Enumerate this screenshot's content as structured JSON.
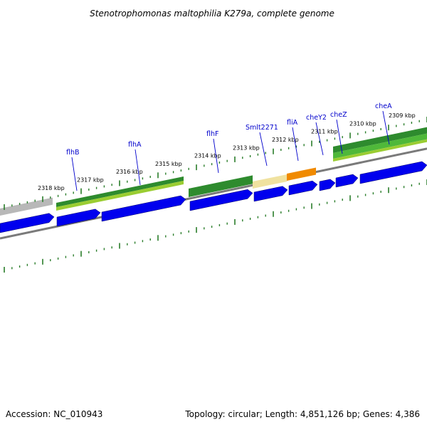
{
  "title": "Stenotrophomonas maltophilia K279a, complete genome",
  "footer": {
    "accession": "Accession: NC_010943",
    "summary": "Topology: circular; Length: 4,851,126 bp; Genes: 4,386"
  },
  "kbp_labels": [
    "2318 kbp",
    "2317 kbp",
    "2316 kbp",
    "2315 kbp",
    "2314 kbp",
    "2313 kbp",
    "2312 kbp",
    "2311 kbp",
    "2310 kbp",
    "2309 kbp"
  ],
  "gene_labels": [
    "flhB",
    "flhA",
    "flhF",
    "Smlt2271",
    "fliA",
    "cheY2",
    "cheZ",
    "cheA"
  ],
  "colors": {
    "cds_blue": "#0000ee",
    "cds_green_dark": "#2e8b2e",
    "cds_green_light": "#9acd32",
    "tan": "#f0e2a0",
    "orange": "#f08a00",
    "backbone_gray": "#888888",
    "tick_green": "#2a7d2a",
    "label_blue": "#0000cc"
  }
}
